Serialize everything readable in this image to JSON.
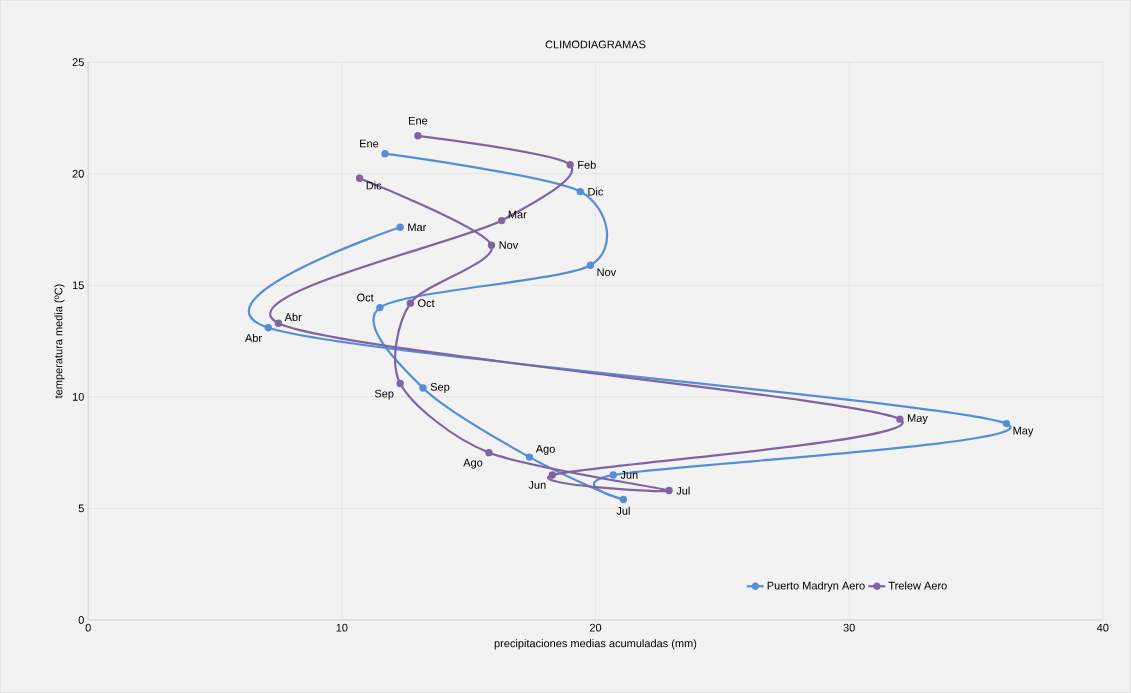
{
  "chart_data": {
    "type": "line",
    "title": "CLIMODIAGRAMAS",
    "xlabel": "precipitaciones medias acumuladas (mm)",
    "ylabel": "temperatura media (ºC)",
    "xlim": [
      0,
      40
    ],
    "xticks": [
      0,
      10,
      20,
      30,
      40
    ],
    "ylim": [
      0,
      25
    ],
    "yticks": [
      0,
      5,
      10,
      15,
      20,
      25
    ],
    "grid": true,
    "legend": "bottom right",
    "marker": "circle",
    "line_style": "solid",
    "series": [
      {
        "name": "Puerto Madryn Aero",
        "color": "#558ed5",
        "x": [
          12.3,
          7.1,
          36.2,
          20.7,
          21.1,
          17.4,
          13.2,
          11.5,
          19.8,
          19.4,
          11.7
        ],
        "values": [
          17.6,
          13.1,
          8.8,
          6.5,
          5.4,
          7.3,
          10.4,
          14.0,
          15.9,
          19.2,
          20.9
        ],
        "value_labels": [
          "Mar",
          "Abr",
          "May",
          "Jun",
          "Jul",
          "Ago",
          "Sep",
          "Oct",
          "Nov",
          "Dic",
          "Ene"
        ]
      },
      {
        "name": "Trelew Aero",
        "color": "#8064a2",
        "x": [
          13.0,
          19.0,
          16.3,
          7.5,
          32.0,
          18.3,
          22.9,
          15.8,
          12.3,
          12.7,
          15.9,
          10.7
        ],
        "values": [
          21.7,
          20.4,
          17.9,
          13.3,
          9.0,
          6.5,
          5.8,
          7.5,
          10.6,
          14.2,
          16.8,
          19.8
        ],
        "value_labels": [
          "Ene",
          "Feb",
          "Mar",
          "Abr",
          "May",
          "Jun",
          "Jul",
          "Ago",
          "Sep",
          "Oct",
          "Nov",
          "Dic"
        ]
      }
    ]
  }
}
